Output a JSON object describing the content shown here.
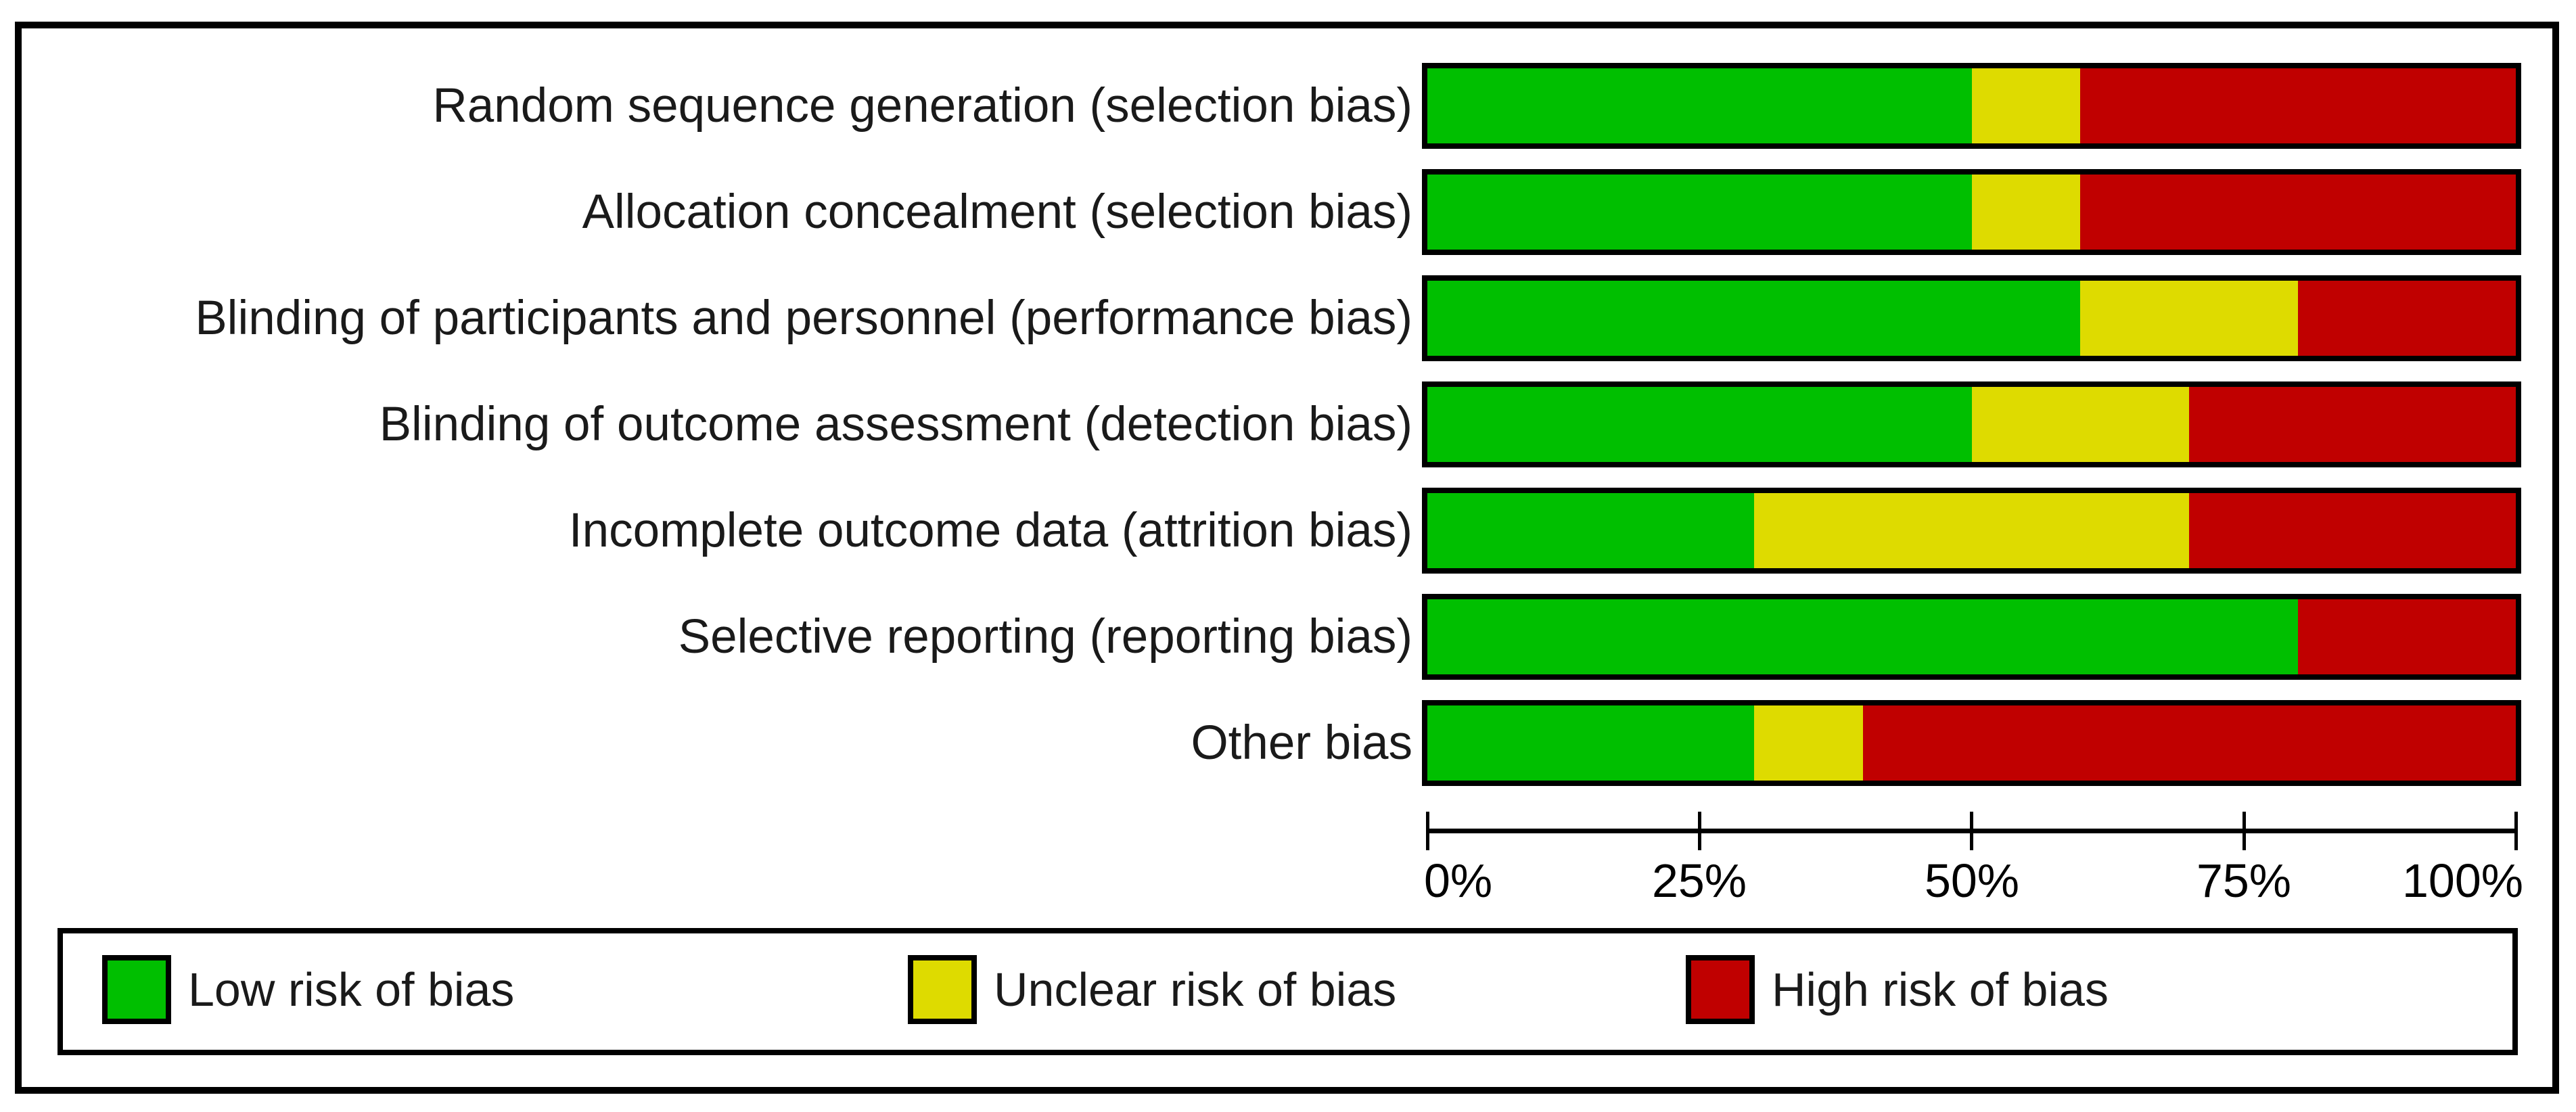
{
  "chart_data": {
    "type": "bar",
    "variant": "horizontal-stacked-percentage",
    "title": "",
    "xlabel": "",
    "ylabel": "",
    "xlim": [
      0,
      100
    ],
    "grid": false,
    "legend_position": "bottom",
    "x_ticks": [
      "0%",
      "25%",
      "50%",
      "75%",
      "100%"
    ],
    "categories": [
      "Random sequence generation (selection bias)",
      "Allocation concealment (selection bias)",
      "Blinding of participants and personnel (performance bias)",
      "Blinding of outcome assessment (detection bias)",
      "Incomplete outcome data (attrition bias)",
      "Selective reporting (reporting bias)",
      "Other bias"
    ],
    "series": [
      {
        "name": "Low risk of bias",
        "color": "#00bf00",
        "values": [
          50,
          50,
          60,
          50,
          30,
          80,
          30
        ]
      },
      {
        "name": "Unclear risk of bias",
        "color": "#dedb00",
        "values": [
          10,
          10,
          20,
          20,
          40,
          0,
          10
        ]
      },
      {
        "name": "High risk of bias",
        "color": "#c00000",
        "values": [
          40,
          40,
          20,
          30,
          30,
          20,
          60
        ]
      }
    ]
  },
  "legend": {
    "items": [
      {
        "label": "Low risk of bias",
        "color": "#00bf00"
      },
      {
        "label": "Unclear risk of bias",
        "color": "#dedb00"
      },
      {
        "label": "High risk of bias",
        "color": "#c00000"
      }
    ]
  }
}
